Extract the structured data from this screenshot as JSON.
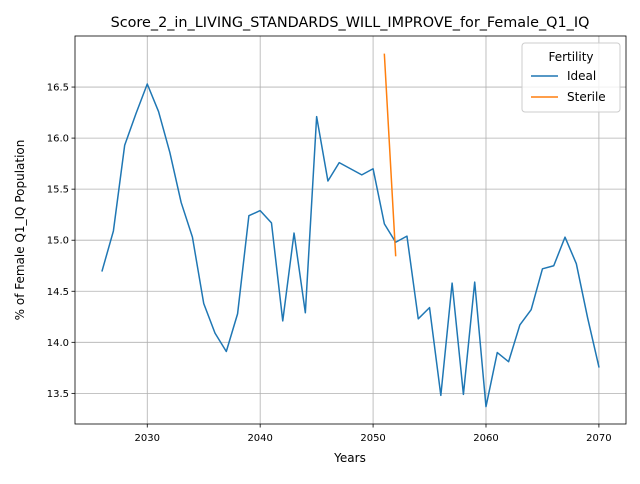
{
  "chart_data": {
    "type": "line",
    "title": "Score_2_in_LIVING_STANDARDS_WILL_IMPROVE_for_Female_Q1_IQ",
    "xlabel": "Years",
    "ylabel": "% of Female Q1_IQ Population",
    "xlim": [
      2023.6,
      2072.4
    ],
    "ylim": [
      13.2,
      17.0
    ],
    "xticks": [
      2030,
      2040,
      2050,
      2060,
      2070
    ],
    "yticks": [
      13.5,
      14.0,
      14.5,
      15.0,
      15.5,
      16.0,
      16.5
    ],
    "ytick_labels": [
      "13.5",
      "14.0",
      "14.5",
      "15.0",
      "15.5",
      "16.0",
      "16.5"
    ],
    "grid": true,
    "legend": {
      "title": "Fertility",
      "placement": "top-right"
    },
    "series": [
      {
        "name": "Ideal",
        "color": "#1f77b4",
        "x": [
          2026,
          2027,
          2028,
          2029,
          2030,
          2031,
          2032,
          2033,
          2034,
          2035,
          2036,
          2037,
          2038,
          2039,
          2040,
          2041,
          2042,
          2043,
          2044,
          2045,
          2046,
          2047,
          2048,
          2049,
          2050,
          2051,
          2052,
          2053,
          2054,
          2055,
          2056,
          2057,
          2058,
          2059,
          2060,
          2061,
          2062,
          2063,
          2064,
          2065,
          2066,
          2067,
          2068,
          2069,
          2070
        ],
        "y": [
          14.7,
          15.09,
          15.93,
          16.24,
          16.53,
          16.26,
          15.86,
          15.37,
          15.03,
          14.38,
          14.09,
          13.91,
          14.28,
          15.24,
          15.29,
          15.17,
          14.21,
          15.07,
          14.29,
          16.21,
          15.58,
          15.76,
          15.7,
          15.64,
          15.7,
          15.16,
          14.98,
          15.04,
          14.23,
          14.34,
          13.48,
          14.58,
          13.49,
          14.59,
          13.37,
          13.9,
          13.81,
          14.17,
          14.32,
          14.72,
          14.75,
          15.03,
          14.77,
          14.24,
          13.76
        ]
      },
      {
        "name": "Sterile",
        "color": "#ff7f0e",
        "x": [
          2051,
          2052
        ],
        "y": [
          16.82,
          14.85
        ]
      }
    ]
  }
}
